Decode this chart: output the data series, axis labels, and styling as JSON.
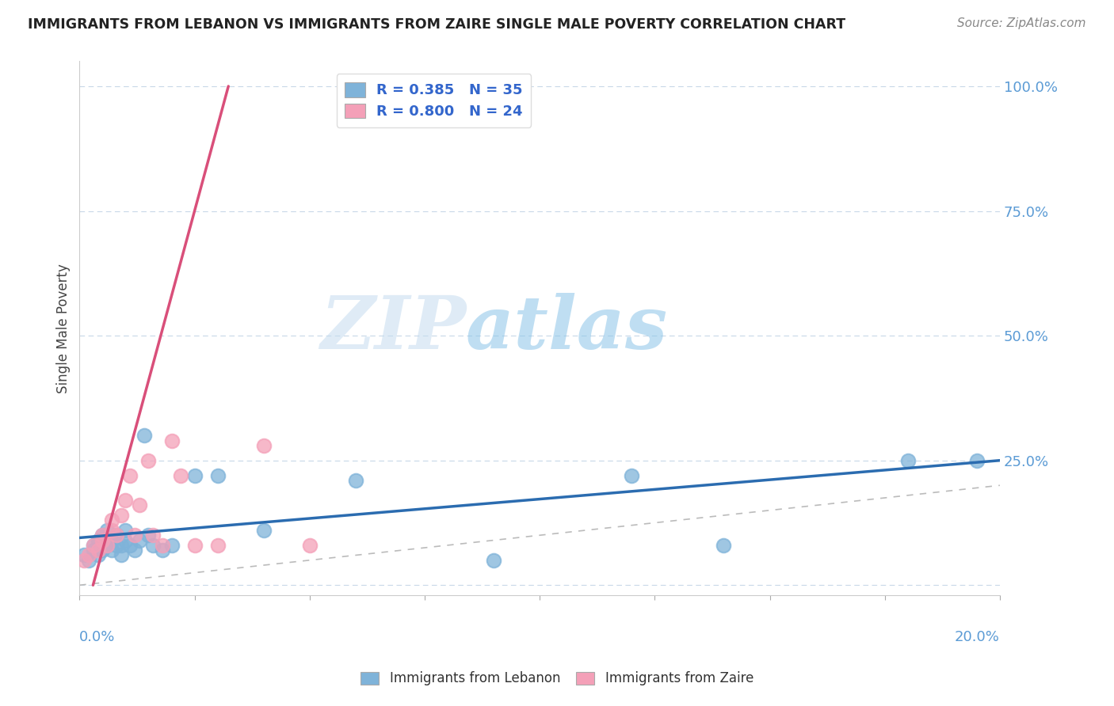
{
  "title": "IMMIGRANTS FROM LEBANON VS IMMIGRANTS FROM ZAIRE SINGLE MALE POVERTY CORRELATION CHART",
  "source": "Source: ZipAtlas.com",
  "ylabel": "Single Male Poverty",
  "xlim": [
    0.0,
    0.2
  ],
  "ylim": [
    -0.02,
    1.05
  ],
  "lebanon_R": 0.385,
  "lebanon_N": 35,
  "zaire_R": 0.8,
  "zaire_N": 24,
  "lebanon_color": "#7FB3D9",
  "zaire_color": "#F4A0B8",
  "lebanon_line_color": "#2B6CB0",
  "zaire_line_color": "#D94F7A",
  "watermark_zip": "ZIP",
  "watermark_atlas": "atlas",
  "background_color": "#FFFFFF",
  "plot_bg_color": "#FFFFFF",
  "grid_color": "#C8D8E8",
  "ytick_color": "#5B9BD5",
  "title_color": "#222222",
  "source_color": "#888888",
  "lebanon_scatter_x": [
    0.001,
    0.002,
    0.003,
    0.003,
    0.004,
    0.004,
    0.005,
    0.005,
    0.006,
    0.006,
    0.007,
    0.007,
    0.008,
    0.008,
    0.009,
    0.009,
    0.01,
    0.01,
    0.011,
    0.012,
    0.013,
    0.014,
    0.015,
    0.016,
    0.018,
    0.02,
    0.025,
    0.03,
    0.04,
    0.06,
    0.09,
    0.12,
    0.14,
    0.18,
    0.195
  ],
  "lebanon_scatter_y": [
    0.06,
    0.05,
    0.07,
    0.08,
    0.06,
    0.09,
    0.07,
    0.1,
    0.08,
    0.11,
    0.07,
    0.09,
    0.08,
    0.1,
    0.06,
    0.08,
    0.09,
    0.11,
    0.08,
    0.07,
    0.09,
    0.3,
    0.1,
    0.08,
    0.07,
    0.08,
    0.22,
    0.22,
    0.11,
    0.21,
    0.05,
    0.22,
    0.08,
    0.25,
    0.25
  ],
  "zaire_scatter_x": [
    0.001,
    0.002,
    0.003,
    0.004,
    0.005,
    0.005,
    0.006,
    0.007,
    0.007,
    0.008,
    0.009,
    0.01,
    0.011,
    0.012,
    0.013,
    0.015,
    0.016,
    0.018,
    0.02,
    0.022,
    0.025,
    0.03,
    0.04,
    0.05
  ],
  "zaire_scatter_y": [
    0.05,
    0.06,
    0.08,
    0.07,
    0.09,
    0.1,
    0.08,
    0.11,
    0.13,
    0.1,
    0.14,
    0.17,
    0.22,
    0.1,
    0.16,
    0.25,
    0.1,
    0.08,
    0.29,
    0.22,
    0.08,
    0.08,
    0.28,
    0.08
  ]
}
